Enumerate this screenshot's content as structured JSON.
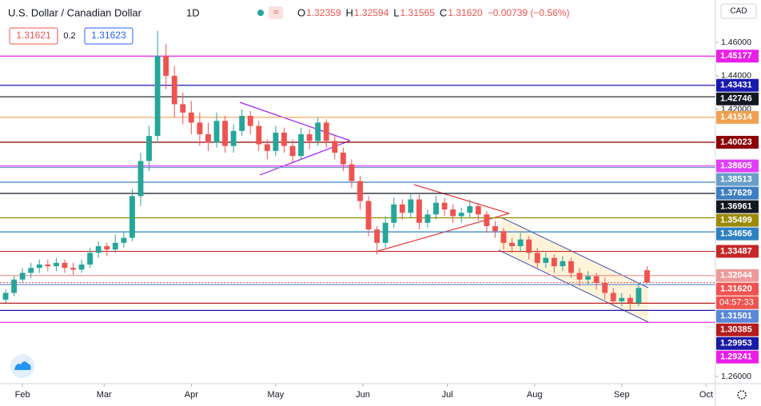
{
  "chart_data": {
    "type": "candlestick",
    "symbol": "U.S. Dollar / Canadian Dollar",
    "interval": "1D",
    "ohlc_letters": [
      "O",
      "H",
      "L",
      "C"
    ],
    "ohlc_labels": [
      "1.32359",
      "1.32594",
      "1.31565",
      "1.31620"
    ],
    "change": "−0.00739 (−0.56%)",
    "sell_price": "1.31621",
    "spread": "0.2",
    "buy_price": "1.31623",
    "currency": "CAD",
    "up_color": "#26a69a",
    "down_color": "#ef5350",
    "xlim": [
      -8,
      246.3
    ],
    "ylim": [
      1.2557,
      1.4854
    ],
    "xticks": [
      {
        "value": 0,
        "label": "Feb"
      },
      {
        "value": 29,
        "label": "Mar"
      },
      {
        "value": 60,
        "label": "Apr"
      },
      {
        "value": 90,
        "label": "May"
      },
      {
        "value": 121,
        "label": "Jun"
      },
      {
        "value": 151,
        "label": "Jul"
      },
      {
        "value": 182,
        "label": "Aug"
      },
      {
        "value": 213,
        "label": "Sep"
      },
      {
        "value": 243,
        "label": "Oct"
      }
    ],
    "yticks": [
      {
        "value": 1.46,
        "label": "1.46000"
      },
      {
        "value": 1.44,
        "label": "1.44000"
      },
      {
        "value": 1.42,
        "label": "1.42000"
      },
      {
        "value": 1.26,
        "label": "1.26000"
      }
    ],
    "x": [
      -6,
      -3,
      0,
      3,
      6,
      9,
      12,
      15,
      18,
      21,
      24,
      27,
      30,
      33,
      36,
      39,
      42,
      45,
      48,
      51,
      54,
      57,
      60,
      63,
      66,
      69,
      72,
      75,
      78,
      81,
      84,
      87,
      90,
      93,
      96,
      99,
      102,
      105,
      108,
      111,
      114,
      117,
      120,
      123,
      126,
      129,
      132,
      135,
      138,
      141,
      144,
      147,
      150,
      153,
      156,
      159,
      162,
      165,
      168,
      171,
      174,
      177,
      180,
      183,
      186,
      189,
      192,
      195,
      198,
      201,
      204,
      207,
      210,
      213,
      216,
      219,
      222
    ],
    "candles": [
      [
        1.306,
        1.312,
        1.304,
        1.31
      ],
      [
        1.31,
        1.32,
        1.308,
        1.318
      ],
      [
        1.318,
        1.325,
        1.316,
        1.322
      ],
      [
        1.322,
        1.328,
        1.319,
        1.325
      ],
      [
        1.325,
        1.33,
        1.322,
        1.327
      ],
      [
        1.327,
        1.33,
        1.323,
        1.326
      ],
      [
        1.326,
        1.331,
        1.323,
        1.328
      ],
      [
        1.328,
        1.33,
        1.322,
        1.325
      ],
      [
        1.325,
        1.328,
        1.321,
        1.324
      ],
      [
        1.324,
        1.33,
        1.322,
        1.327
      ],
      [
        1.327,
        1.337,
        1.325,
        1.334
      ],
      [
        1.334,
        1.341,
        1.331,
        1.338
      ],
      [
        1.338,
        1.34,
        1.332,
        1.336
      ],
      [
        1.336,
        1.345,
        1.334,
        1.34
      ],
      [
        1.34,
        1.347,
        1.337,
        1.343
      ],
      [
        1.343,
        1.372,
        1.341,
        1.368
      ],
      [
        1.368,
        1.394,
        1.362,
        1.389
      ],
      [
        1.389,
        1.41,
        1.383,
        1.404
      ],
      [
        1.404,
        1.467,
        1.4,
        1.452
      ],
      [
        1.452,
        1.459,
        1.432,
        1.44
      ],
      [
        1.44,
        1.446,
        1.415,
        1.423
      ],
      [
        1.423,
        1.43,
        1.411,
        1.418
      ],
      [
        1.418,
        1.425,
        1.405,
        1.412
      ],
      [
        1.412,
        1.418,
        1.398,
        1.405
      ],
      [
        1.405,
        1.412,
        1.395,
        1.4
      ],
      [
        1.4,
        1.418,
        1.397,
        1.413
      ],
      [
        1.413,
        1.416,
        1.394,
        1.398
      ],
      [
        1.398,
        1.411,
        1.394,
        1.407
      ],
      [
        1.407,
        1.42,
        1.404,
        1.416
      ],
      [
        1.416,
        1.419,
        1.405,
        1.41
      ],
      [
        1.41,
        1.413,
        1.395,
        1.399
      ],
      [
        1.399,
        1.402,
        1.39,
        1.395
      ],
      [
        1.395,
        1.41,
        1.392,
        1.406
      ],
      [
        1.406,
        1.409,
        1.394,
        1.398
      ],
      [
        1.398,
        1.402,
        1.388,
        1.392
      ],
      [
        1.392,
        1.409,
        1.39,
        1.405
      ],
      [
        1.405,
        1.408,
        1.396,
        1.401
      ],
      [
        1.401,
        1.415,
        1.398,
        1.412
      ],
      [
        1.412,
        1.414,
        1.397,
        1.401
      ],
      [
        1.401,
        1.404,
        1.39,
        1.394
      ],
      [
        1.394,
        1.397,
        1.383,
        1.387
      ],
      [
        1.387,
        1.39,
        1.373,
        1.377
      ],
      [
        1.377,
        1.38,
        1.36,
        1.365
      ],
      [
        1.365,
        1.368,
        1.344,
        1.348
      ],
      [
        1.348,
        1.35,
        1.333,
        1.34
      ],
      [
        1.34,
        1.356,
        1.337,
        1.352
      ],
      [
        1.352,
        1.367,
        1.349,
        1.363
      ],
      [
        1.363,
        1.366,
        1.354,
        1.358
      ],
      [
        1.358,
        1.37,
        1.355,
        1.366
      ],
      [
        1.366,
        1.369,
        1.348,
        1.352
      ],
      [
        1.352,
        1.36,
        1.349,
        1.357
      ],
      [
        1.357,
        1.368,
        1.354,
        1.364
      ],
      [
        1.364,
        1.367,
        1.356,
        1.36
      ],
      [
        1.36,
        1.363,
        1.352,
        1.356
      ],
      [
        1.356,
        1.361,
        1.352,
        1.358
      ],
      [
        1.358,
        1.366,
        1.355,
        1.362
      ],
      [
        1.362,
        1.364,
        1.353,
        1.357
      ],
      [
        1.357,
        1.359,
        1.346,
        1.35
      ],
      [
        1.35,
        1.353,
        1.343,
        1.347
      ],
      [
        1.347,
        1.349,
        1.336,
        1.34
      ],
      [
        1.34,
        1.343,
        1.334,
        1.338
      ],
      [
        1.338,
        1.346,
        1.335,
        1.342
      ],
      [
        1.342,
        1.344,
        1.33,
        1.334
      ],
      [
        1.334,
        1.337,
        1.325,
        1.328
      ],
      [
        1.328,
        1.334,
        1.325,
        1.331
      ],
      [
        1.331,
        1.333,
        1.322,
        1.326
      ],
      [
        1.326,
        1.332,
        1.323,
        1.329
      ],
      [
        1.329,
        1.331,
        1.319,
        1.322
      ],
      [
        1.322,
        1.325,
        1.314,
        1.318
      ],
      [
        1.318,
        1.323,
        1.315,
        1.32
      ],
      [
        1.32,
        1.322,
        1.312,
        1.316
      ],
      [
        1.316,
        1.319,
        1.306,
        1.31
      ],
      [
        1.31,
        1.313,
        1.302,
        1.305
      ],
      [
        1.305,
        1.31,
        1.302,
        1.307
      ],
      [
        1.307,
        1.309,
        1.3,
        1.304
      ],
      [
        1.304,
        1.316,
        1.302,
        1.313
      ],
      [
        1.32359,
        1.32594,
        1.31565,
        1.3162
      ]
    ],
    "levels": [
      {
        "value": 1.45177,
        "color": "#e91ee9"
      },
      {
        "value": 1.43431,
        "color": "#1a1ab0"
      },
      {
        "value": 1.42746,
        "color": "#131722"
      },
      {
        "value": 1.41514,
        "color": "#f0a050"
      },
      {
        "value": 1.40023,
        "color": "#8b0000"
      },
      {
        "value": 1.38605,
        "color": "#e040fb"
      },
      {
        "value": 1.38513,
        "color": "#6a9ec8"
      },
      {
        "value": 1.37629,
        "color": "#3d7fc0"
      },
      {
        "value": 1.36961,
        "color": "#131722"
      },
      {
        "value": 1.35499,
        "color": "#9b8a00"
      },
      {
        "value": 1.34656,
        "color": "#2f80c0"
      },
      {
        "value": 1.33487,
        "color": "#c62828"
      },
      {
        "value": 1.32044,
        "color": "#ef9a9a"
      },
      {
        "value": 1.3162,
        "label": "1.31620",
        "color": "#ef5350",
        "style": "dotted",
        "countdown": "04:57:33"
      },
      {
        "value": 1.31501,
        "color": "#5b87d8"
      },
      {
        "value": 1.30385,
        "color": "#b71c1c"
      },
      {
        "value": 1.29953,
        "color": "#1a1aa6"
      },
      {
        "value": 1.29241,
        "color": "#e91ee9"
      }
    ]
  }
}
